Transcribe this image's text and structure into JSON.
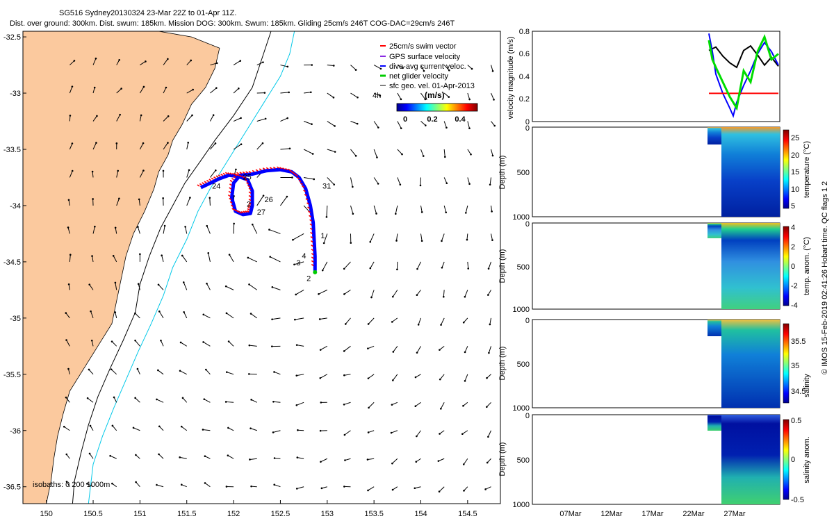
{
  "title_line1": "SG516 Sydney20130324 23-Mar 22Z to 01-Apr 11Z.",
  "title_line2": "Dist. over ground: 300km. Dist. swum: 185km. Mission DOG: 300km. Swum: 185km. Gliding 25cm/s 246T COG-DAC=29cm/s 246T",
  "credit": "© IMOS 15-Feb-2019 02:41:26 Hobart time. QC flags 1  2",
  "colors": {
    "land": "#fbc99e",
    "swim_vector": "#ff0000",
    "gps_velocity": "#8a2be2",
    "dac": "#0000ff",
    "net_velocity": "#00cc00",
    "isobath_0": "#000000",
    "isobath_200": "#000000",
    "isobath_1000": "#00c8e8"
  },
  "chart_data": [
    {
      "id": "map",
      "type": "scatter",
      "xlim": [
        149.75,
        154.85
      ],
      "ylim": [
        -36.65,
        -32.45
      ],
      "xticks": [
        150,
        150.5,
        151,
        151.5,
        152,
        152.5,
        153,
        153.5,
        154,
        154.5
      ],
      "yticks": [
        -32.5,
        -33,
        -33.5,
        -34,
        -34.5,
        -35,
        -35.5,
        -36,
        -36.5
      ],
      "legend": {
        "position": "top-right",
        "entries": [
          "25cm/s swim vector",
          "GPS surface velocity",
          "dive-avg current veloc.",
          "net glider velocity",
          "sfc geo. vel. 01-Apr-2013"
        ]
      },
      "annotation_4h": "4h",
      "colorbar": {
        "label": "(m/s)",
        "ticks": [
          "0",
          "0.2",
          "0.4"
        ],
        "range": [
          0,
          0.5
        ]
      },
      "isobaths_label": "isobaths: 0   200   1000m",
      "track": [
        [
          151.65,
          -33.84
        ],
        [
          151.75,
          -33.8
        ],
        [
          151.85,
          -33.76
        ],
        [
          151.95,
          -33.73
        ],
        [
          152.05,
          -33.74
        ],
        [
          152.15,
          -33.77
        ],
        [
          152.2,
          -33.87
        ],
        [
          152.2,
          -34.0
        ],
        [
          152.18,
          -34.07
        ],
        [
          152.1,
          -34.08
        ],
        [
          152.02,
          -34.05
        ],
        [
          151.98,
          -33.93
        ],
        [
          152.0,
          -33.8
        ],
        [
          152.07,
          -33.73
        ],
        [
          152.2,
          -33.72
        ],
        [
          152.35,
          -33.69
        ],
        [
          152.5,
          -33.68
        ],
        [
          152.62,
          -33.7
        ],
        [
          152.7,
          -33.75
        ],
        [
          152.77,
          -33.85
        ],
        [
          152.82,
          -34.0
        ],
        [
          152.85,
          -34.15
        ],
        [
          152.86,
          -34.3
        ],
        [
          152.87,
          -34.45
        ],
        [
          152.87,
          -34.58
        ]
      ],
      "track_labels": [
        {
          "text": "24",
          "lon": 151.77,
          "lat": -33.85
        },
        {
          "text": "25",
          "lon": 152.1,
          "lat": -33.77
        },
        {
          "text": "26",
          "lon": 152.33,
          "lat": -33.97
        },
        {
          "text": "27",
          "lon": 152.25,
          "lat": -34.08
        },
        {
          "text": "2",
          "lon": 152.14,
          "lat": -34.01
        },
        {
          "text": "31",
          "lon": 152.95,
          "lat": -33.85
        },
        {
          "text": "1",
          "lon": 152.93,
          "lat": -34.29
        },
        {
          "text": "3",
          "lon": 152.67,
          "lat": -34.53
        },
        {
          "text": "4",
          "lon": 152.73,
          "lat": -34.47
        },
        {
          "text": "2",
          "lon": 152.78,
          "lat": -34.67
        }
      ],
      "coast": [
        [
          150.6,
          -32.45
        ],
        [
          151.2,
          -32.45
        ],
        [
          151.55,
          -32.5
        ],
        [
          151.85,
          -32.6
        ],
        [
          151.8,
          -32.78
        ],
        [
          151.7,
          -32.95
        ],
        [
          151.55,
          -33.1
        ],
        [
          151.45,
          -33.28
        ],
        [
          151.35,
          -33.42
        ],
        [
          151.3,
          -33.55
        ],
        [
          151.2,
          -33.7
        ],
        [
          151.15,
          -33.85
        ],
        [
          151.05,
          -34.05
        ],
        [
          150.93,
          -34.25
        ],
        [
          150.85,
          -34.45
        ],
        [
          150.8,
          -34.65
        ],
        [
          150.75,
          -34.85
        ],
        [
          150.7,
          -35.05
        ],
        [
          150.55,
          -35.25
        ],
        [
          150.4,
          -35.45
        ],
        [
          150.25,
          -35.65
        ],
        [
          150.18,
          -35.85
        ],
        [
          150.12,
          -36.05
        ],
        [
          150.08,
          -36.25
        ],
        [
          150.05,
          -36.45
        ],
        [
          150.0,
          -36.65
        ],
        [
          149.75,
          -36.65
        ],
        [
          149.75,
          -32.45
        ]
      ],
      "isobath_200m": [
        [
          152.4,
          -32.45
        ],
        [
          152.3,
          -32.7
        ],
        [
          152.2,
          -32.95
        ],
        [
          152.0,
          -33.2
        ],
        [
          151.8,
          -33.42
        ],
        [
          151.65,
          -33.6
        ],
        [
          151.48,
          -33.8
        ],
        [
          151.35,
          -34.0
        ],
        [
          151.22,
          -34.2
        ],
        [
          151.1,
          -34.45
        ],
        [
          151.0,
          -34.7
        ],
        [
          150.95,
          -34.95
        ],
        [
          150.82,
          -35.2
        ],
        [
          150.68,
          -35.45
        ],
        [
          150.55,
          -35.7
        ],
        [
          150.45,
          -35.95
        ],
        [
          150.37,
          -36.2
        ],
        [
          150.3,
          -36.45
        ],
        [
          150.28,
          -36.65
        ]
      ],
      "isobath_1000m": [
        [
          152.65,
          -32.45
        ],
        [
          152.6,
          -32.65
        ],
        [
          152.5,
          -32.85
        ],
        [
          152.35,
          -33.05
        ],
        [
          152.2,
          -33.25
        ],
        [
          152.05,
          -33.45
        ],
        [
          151.9,
          -33.65
        ],
        [
          151.75,
          -33.85
        ],
        [
          151.62,
          -34.05
        ],
        [
          151.5,
          -34.3
        ],
        [
          151.35,
          -34.55
        ],
        [
          151.25,
          -34.8
        ],
        [
          151.12,
          -35.05
        ],
        [
          150.98,
          -35.3
        ],
        [
          150.85,
          -35.55
        ],
        [
          150.72,
          -35.8
        ],
        [
          150.6,
          -36.05
        ],
        [
          150.5,
          -36.3
        ],
        [
          150.45,
          -36.65
        ]
      ]
    },
    {
      "id": "velocity",
      "type": "line",
      "ylabel": "velocity magnitude (m/s)",
      "ylim": [
        0,
        0.8
      ],
      "yticks": [
        "0",
        "0.2",
        "0.4",
        "0.6",
        "0.8"
      ],
      "series": [
        {
          "color": "#000000",
          "x": [
            0.0,
            0.1,
            0.2,
            0.3,
            0.4,
            0.5,
            0.6,
            0.7,
            0.8,
            0.9,
            1.0
          ],
          "values": [
            0.63,
            0.66,
            0.58,
            0.52,
            0.48,
            0.63,
            0.67,
            0.59,
            0.5,
            0.57,
            0.49
          ]
        },
        {
          "color": "#0000ff",
          "x": [
            0.0,
            0.05,
            0.1,
            0.2,
            0.3,
            0.35,
            0.4,
            0.5,
            0.6,
            0.7,
            0.8,
            0.9,
            1.0
          ],
          "values": [
            0.78,
            0.62,
            0.42,
            0.25,
            0.12,
            0.05,
            0.17,
            0.32,
            0.45,
            0.6,
            0.7,
            0.62,
            0.5
          ]
        },
        {
          "color": "#ff0000",
          "x": [
            0.0,
            1.0
          ],
          "values": [
            0.25,
            0.25
          ]
        },
        {
          "color": "#00dd00",
          "x": [
            0.0,
            0.05,
            0.1,
            0.2,
            0.3,
            0.4,
            0.5,
            0.6,
            0.7,
            0.8,
            0.9,
            1.0
          ],
          "values": [
            0.72,
            0.55,
            0.48,
            0.35,
            0.22,
            0.12,
            0.45,
            0.35,
            0.62,
            0.75,
            0.55,
            0.6
          ]
        }
      ]
    },
    {
      "id": "temperature",
      "type": "heatmap",
      "ylabel": "Depth (m)",
      "ylim": [
        0,
        1000
      ],
      "yticks": [
        "0",
        "500",
        "1000"
      ],
      "colorbar_label": "temperature (°C)",
      "colorbar_ticks": [
        "5",
        "10",
        "15",
        "20",
        "25"
      ]
    },
    {
      "id": "temp_anom",
      "type": "heatmap",
      "ylabel": "Depth (m)",
      "ylim": [
        0,
        1000
      ],
      "yticks": [
        "0",
        "500",
        "1000"
      ],
      "colorbar_label": "temp. anom. (°C)",
      "colorbar_ticks": [
        "4",
        "2",
        "0",
        "-2",
        "-4"
      ]
    },
    {
      "id": "salinity",
      "type": "heatmap",
      "ylabel": "Depth (m)",
      "ylim": [
        0,
        1000
      ],
      "yticks": [
        "0",
        "500",
        "1000"
      ],
      "colorbar_label": "salinity",
      "colorbar_ticks": [
        "35.5",
        "35",
        "34.5"
      ]
    },
    {
      "id": "salinity_anom",
      "type": "heatmap",
      "ylabel": "Depth (m)",
      "ylim": [
        0,
        1000
      ],
      "yticks": [
        "0",
        "500",
        "1000"
      ],
      "colorbar_label": "salinity anom.",
      "colorbar_ticks": [
        "0.5",
        "0",
        "-0.5"
      ],
      "xticks": [
        "07Mar",
        "12Mar",
        "17Mar",
        "22Mar",
        "27Mar"
      ]
    }
  ]
}
